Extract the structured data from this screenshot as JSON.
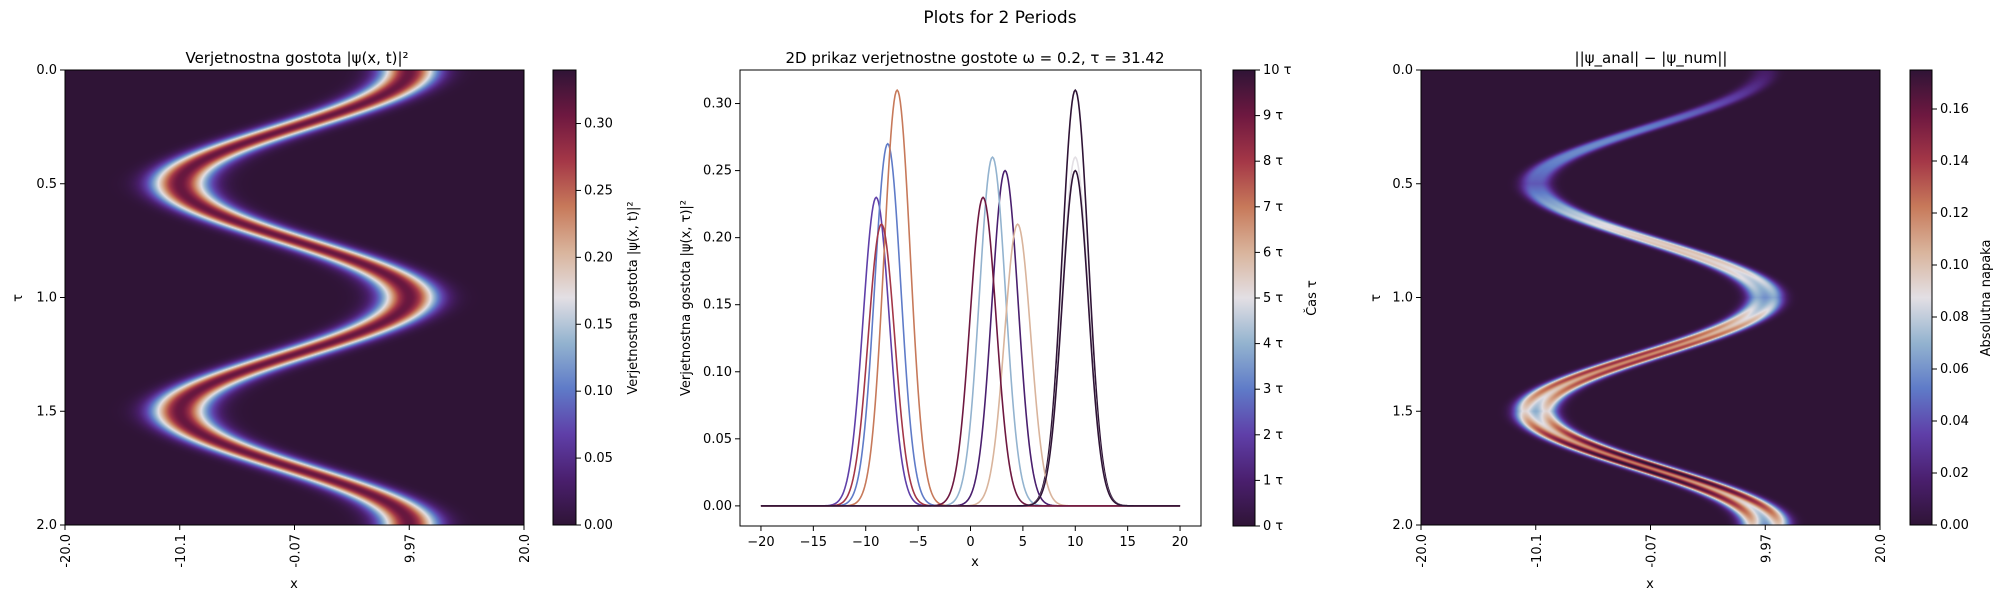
{
  "suptitle": "Plots for 2 Periods",
  "colormap": [
    "#2f1436",
    "#4a1f6e",
    "#5f3fa8",
    "#5f7bc8",
    "#93b3cf",
    "#e3dfe4",
    "#d9b49c",
    "#c7795a",
    "#a43747",
    "#6e1840",
    "#2f1436"
  ],
  "line_color": "#000000",
  "chart_data": [
    {
      "type": "heatmap",
      "title": "Verjetnostna gostota |ψ(x, t)|²",
      "xlabel": "x",
      "ylabel": "τ",
      "xticks": [
        "-20.0",
        "-10.1",
        "-0.07",
        "9.97",
        "20.0"
      ],
      "xlim": [
        -20,
        20
      ],
      "yticks": [
        "0.0",
        "0.5",
        "1.0",
        "1.5",
        "2.0"
      ],
      "ylim": [
        0,
        2
      ],
      "colorbar_label": "Verjetnostna gostota |ψ(x, t)|²",
      "colorbar_ticks": [
        "0.00",
        "0.05",
        "0.10",
        "0.15",
        "0.20",
        "0.25",
        "0.30"
      ],
      "colorbar_range": [
        0,
        0.34
      ],
      "amplitude": 10,
      "sigma": 1.7
    },
    {
      "type": "line",
      "title": "2D prikaz verjetnostne gostote ω = 0.2, τ = 31.42",
      "xlabel": "x",
      "ylabel": "Verjetnostna gostota |ψ(x, τ)|²",
      "xlim": [
        -22,
        22
      ],
      "ylim": [
        -0.015,
        0.325
      ],
      "xticks": [
        "−20",
        "−15",
        "−10",
        "−5",
        "0",
        "5",
        "10",
        "15",
        "20"
      ],
      "yticks": [
        "0.00",
        "0.05",
        "0.10",
        "0.15",
        "0.20",
        "0.25",
        "0.30"
      ],
      "colorbar_label": "Čas τ",
      "colorbar_ticks": [
        "0 τ",
        "1 τ",
        "2 τ",
        "3 τ",
        "4 τ",
        "5 τ",
        "6 τ",
        "7 τ",
        "8 τ",
        "9 τ",
        "10 τ"
      ],
      "colorbar_range": [
        0,
        10
      ],
      "series": [
        {
          "t": 0,
          "center": 10.0,
          "peak": 0.31
        },
        {
          "t": 1,
          "center": 3.3,
          "peak": 0.25
        },
        {
          "t": 2,
          "center": -9.0,
          "peak": 0.23
        },
        {
          "t": 3,
          "center": -7.9,
          "peak": 0.27
        },
        {
          "t": 4,
          "center": 2.1,
          "peak": 0.26
        },
        {
          "t": 5,
          "center": 10.0,
          "peak": 0.26
        },
        {
          "t": 6,
          "center": 4.5,
          "peak": 0.21
        },
        {
          "t": 7,
          "center": -7.0,
          "peak": 0.31
        },
        {
          "t": 8,
          "center": -8.5,
          "peak": 0.21
        },
        {
          "t": 9,
          "center": 1.2,
          "peak": 0.23
        },
        {
          "t": 10,
          "center": 10.0,
          "peak": 0.25
        }
      ]
    },
    {
      "type": "heatmap",
      "title": "||ψ_anal| − |ψ_num||",
      "xlabel": "x",
      "ylabel": "τ",
      "xticks": [
        "-20.0",
        "-10.1",
        "-0.07",
        "9.97",
        "20.0"
      ],
      "xlim": [
        -20,
        20
      ],
      "yticks": [
        "0.0",
        "0.5",
        "1.0",
        "1.5",
        "2.0"
      ],
      "ylim": [
        0,
        2
      ],
      "colorbar_label": "Absolutna napaka",
      "colorbar_ticks": [
        "0.00",
        "0.02",
        "0.04",
        "0.06",
        "0.08",
        "0.10",
        "0.12",
        "0.14",
        "0.16"
      ],
      "colorbar_range": [
        0,
        0.175
      ]
    }
  ]
}
